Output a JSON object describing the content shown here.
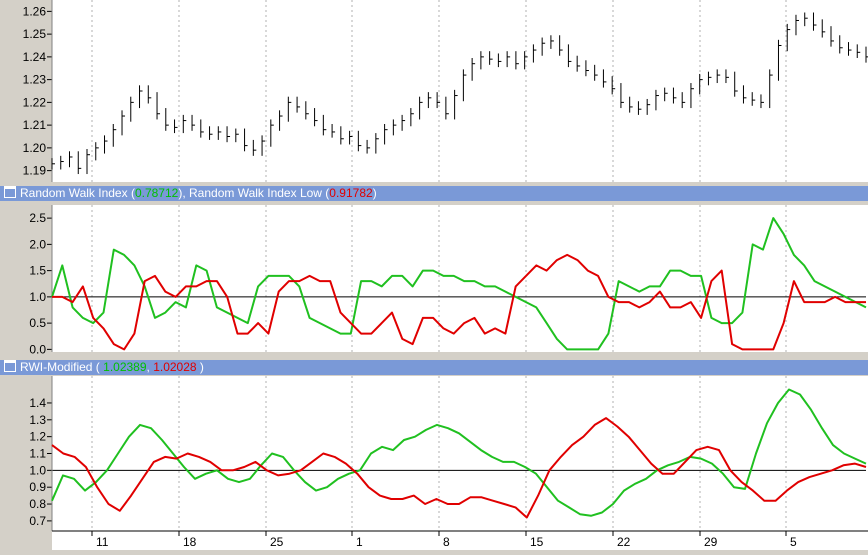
{
  "chart_data": [
    {
      "type": "candlestick",
      "title": "",
      "ylim": [
        1.185,
        1.265
      ],
      "yticks": [
        "1.26",
        "1.25",
        "1.24",
        "1.23",
        "1.22",
        "1.21",
        "1.20",
        "1.19"
      ],
      "xticks": [
        "11",
        "18",
        "25",
        "1",
        "8",
        "15",
        "22",
        "29",
        "5"
      ],
      "grid": "vertical-dotted",
      "series": [
        {
          "color": "#000000",
          "close": [
            1.193,
            1.194,
            1.196,
            1.191,
            1.197,
            1.2,
            1.203,
            1.208,
            1.214,
            1.22,
            1.225,
            1.222,
            1.215,
            1.21,
            1.209,
            1.212,
            1.21,
            1.207,
            1.206,
            1.207,
            1.205,
            1.206,
            1.201,
            1.199,
            1.203,
            1.21,
            1.214,
            1.22,
            1.218,
            1.215,
            1.212,
            1.208,
            1.207,
            1.204,
            1.205,
            1.201,
            1.2,
            1.204,
            1.208,
            1.21,
            1.212,
            1.215,
            1.22,
            1.222,
            1.22,
            1.215,
            1.223,
            1.232,
            1.237,
            1.24,
            1.239,
            1.238,
            1.24,
            1.237,
            1.24,
            1.243,
            1.246,
            1.247,
            1.243,
            1.238,
            1.236,
            1.234,
            1.232,
            1.229,
            1.226,
            1.22,
            1.218,
            1.217,
            1.219,
            1.223,
            1.224,
            1.222,
            1.22,
            1.226,
            1.23,
            1.231,
            1.232,
            1.231,
            1.225,
            1.222,
            1.221,
            1.22,
            1.232,
            1.245,
            1.252,
            1.256,
            1.257,
            1.254,
            1.251,
            1.247,
            1.244,
            1.243,
            1.242,
            1.24
          ]
        }
      ]
    },
    {
      "type": "line",
      "title": "Random Walk Index",
      "ylim": [
        -0.05,
        2.75
      ],
      "yticks": [
        "2.5",
        "2.0",
        "1.5",
        "1.0",
        "0.5",
        "0.0"
      ],
      "reference_line": 1.0,
      "series": [
        {
          "name": "Random Walk Index",
          "color": "#20c020",
          "values": [
            1.0,
            1.6,
            0.8,
            0.6,
            0.5,
            0.7,
            1.9,
            1.8,
            1.6,
            1.2,
            0.6,
            0.7,
            0.9,
            0.8,
            1.6,
            1.5,
            0.8,
            0.7,
            0.6,
            0.5,
            1.2,
            1.4,
            1.4,
            1.4,
            1.2,
            0.6,
            0.5,
            0.4,
            0.3,
            0.3,
            1.3,
            1.3,
            1.2,
            1.4,
            1.4,
            1.2,
            1.5,
            1.5,
            1.4,
            1.4,
            1.3,
            1.3,
            1.2,
            1.2,
            1.1,
            1.0,
            0.9,
            0.8,
            0.5,
            0.2,
            0.0,
            0.0,
            0.0,
            0.0,
            0.3,
            1.3,
            1.2,
            1.1,
            1.2,
            1.2,
            1.5,
            1.5,
            1.4,
            1.4,
            0.6,
            0.5,
            0.5,
            0.7,
            2.0,
            1.9,
            2.5,
            2.2,
            1.8,
            1.6,
            1.3,
            1.2,
            1.1,
            1.0,
            0.9,
            0.8
          ]
        },
        {
          "name": "Random Walk Index Low",
          "color": "#e00000",
          "values": [
            1.0,
            1.0,
            0.9,
            1.2,
            0.6,
            0.4,
            0.1,
            0.0,
            0.3,
            1.3,
            1.4,
            1.1,
            1.0,
            1.2,
            1.2,
            1.3,
            1.3,
            1.0,
            0.3,
            0.3,
            0.5,
            0.3,
            1.1,
            1.3,
            1.3,
            1.4,
            1.3,
            1.3,
            0.7,
            0.5,
            0.3,
            0.3,
            0.5,
            0.7,
            0.2,
            0.1,
            0.6,
            0.6,
            0.4,
            0.3,
            0.5,
            0.6,
            0.3,
            0.4,
            0.3,
            1.2,
            1.4,
            1.6,
            1.5,
            1.7,
            1.8,
            1.7,
            1.5,
            1.4,
            1.0,
            0.9,
            0.9,
            0.8,
            0.9,
            1.1,
            0.8,
            0.8,
            0.9,
            0.6,
            1.3,
            1.5,
            0.1,
            0.0,
            0.0,
            0.0,
            0.0,
            0.5,
            1.3,
            0.9,
            0.9,
            0.9,
            1.0,
            0.9,
            0.9,
            0.9
          ]
        }
      ]
    },
    {
      "type": "line",
      "title": "RWI-Modified",
      "ylim": [
        0.64,
        1.56
      ],
      "yticks": [
        "1.4",
        "1.3",
        "1.2",
        "1.1",
        "1.0",
        "0.9",
        "0.8",
        "0.7"
      ],
      "reference_line": 1.0,
      "series": [
        {
          "name": "",
          "color": "#20c020",
          "values": [
            0.82,
            0.97,
            0.95,
            0.88,
            0.93,
            1.0,
            1.1,
            1.2,
            1.27,
            1.25,
            1.18,
            1.1,
            1.02,
            0.95,
            0.98,
            1.0,
            0.95,
            0.93,
            0.95,
            1.03,
            1.1,
            1.08,
            1.0,
            0.93,
            0.88,
            0.9,
            0.95,
            0.98,
            1.0,
            1.1,
            1.14,
            1.12,
            1.18,
            1.2,
            1.24,
            1.27,
            1.25,
            1.22,
            1.17,
            1.12,
            1.08,
            1.05,
            1.05,
            1.02,
            0.98,
            0.9,
            0.82,
            0.78,
            0.74,
            0.73,
            0.75,
            0.8,
            0.88,
            0.92,
            0.95,
            1.0,
            1.03,
            1.05,
            1.08,
            1.07,
            1.04,
            0.98,
            0.9,
            0.89,
            1.1,
            1.28,
            1.4,
            1.48,
            1.45,
            1.36,
            1.25,
            1.15,
            1.1,
            1.07,
            1.04
          ]
        },
        {
          "name": "",
          "color": "#e00000",
          "values": [
            1.15,
            1.1,
            1.08,
            1.02,
            0.9,
            0.8,
            0.76,
            0.85,
            0.95,
            1.05,
            1.08,
            1.07,
            1.1,
            1.08,
            1.05,
            1.0,
            1.0,
            1.02,
            1.05,
            1.0,
            0.97,
            0.98,
            1.0,
            1.05,
            1.1,
            1.08,
            1.04,
            0.98,
            0.9,
            0.85,
            0.83,
            0.83,
            0.85,
            0.8,
            0.83,
            0.8,
            0.8,
            0.84,
            0.84,
            0.82,
            0.8,
            0.78,
            0.72,
            0.85,
            1.0,
            1.08,
            1.15,
            1.2,
            1.27,
            1.31,
            1.26,
            1.2,
            1.12,
            1.04,
            0.98,
            0.98,
            1.05,
            1.12,
            1.14,
            1.12,
            1.0,
            0.93,
            0.88,
            0.82,
            0.82,
            0.88,
            0.93,
            0.96,
            0.98,
            1.0,
            1.03,
            1.04,
            1.02
          ]
        }
      ]
    }
  ],
  "ui": {
    "pane1_title": {
      "label_a": "Random Walk Index",
      "open_a": " (",
      "value_a": "0.78712",
      "sep": "), Random Walk Index Low ",
      "open_b": "(",
      "value_b": "0.91782",
      "close_b": ")"
    },
    "pane2_title": {
      "label": "RWI-Modified",
      "open_a": " ( ",
      "value_a": "1.02389",
      "sep": ", ",
      "value_b": "1.02028",
      "close_b": " )"
    }
  }
}
